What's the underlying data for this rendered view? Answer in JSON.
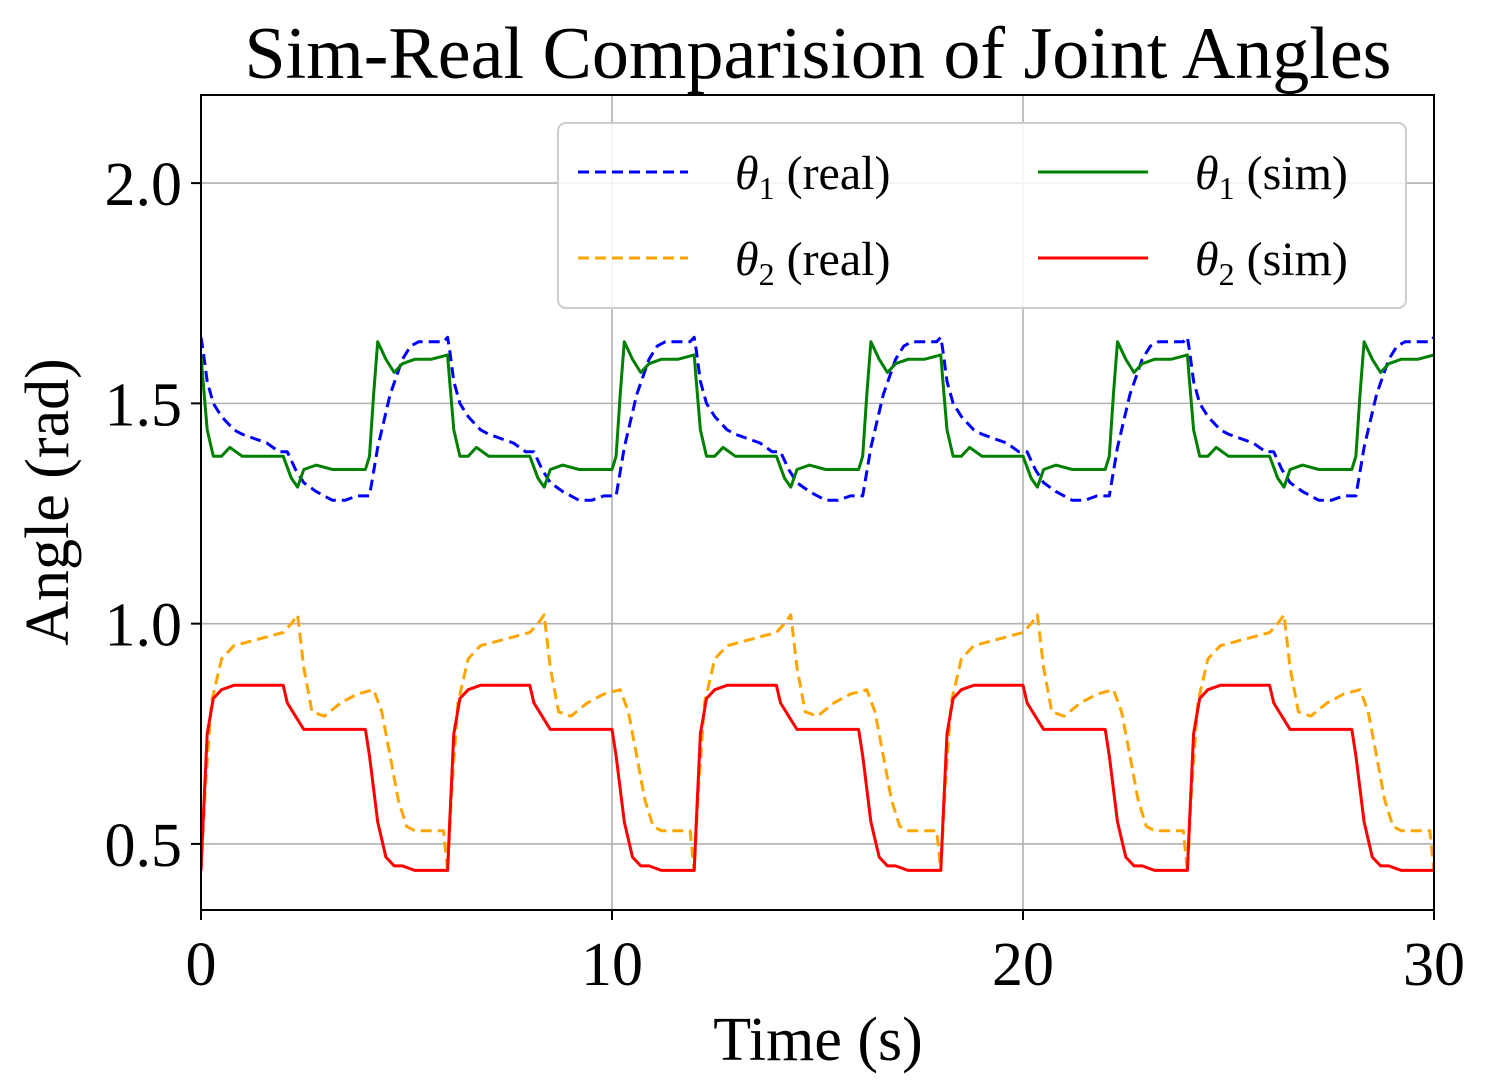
{
  "chart_data": {
    "type": "line",
    "title": "Sim-Real Comparision of Joint Angles",
    "xlabel": "Time (s)",
    "ylabel": "Angle (rad)",
    "xlim": [
      0,
      30
    ],
    "ylim": [
      0.35,
      2.2
    ],
    "xticks": [
      0,
      10,
      20,
      30
    ],
    "xtick_labels": [
      "0",
      "10",
      "20",
      "30"
    ],
    "yticks": [
      0.5,
      1.0,
      1.5,
      2.0
    ],
    "ytick_labels": [
      "0.5",
      "1.0",
      "1.5",
      "2.0"
    ],
    "grid": true,
    "legend": {
      "placement": "top-right",
      "columns": 2
    },
    "period_s": 6,
    "series": [
      {
        "name": "θ1 (real)",
        "sym": "θ",
        "sub": "1",
        "tag": "(real)",
        "color": "#0000ff",
        "dashed": true,
        "cycle_x": [
          0,
          0.05,
          0.15,
          0.3,
          0.5,
          0.8,
          1.0,
          1.3,
          1.6,
          1.9,
          2.1,
          2.3,
          2.5,
          2.8,
          3.0,
          3.2,
          3.5,
          3.8,
          4.0,
          4.1,
          4.3,
          4.6,
          4.9,
          5.1,
          5.3,
          5.6,
          5.9,
          6.0
        ],
        "cycle_y": [
          1.65,
          1.62,
          1.55,
          1.5,
          1.47,
          1.44,
          1.43,
          1.42,
          1.41,
          1.39,
          1.39,
          1.35,
          1.32,
          1.3,
          1.29,
          1.28,
          1.28,
          1.29,
          1.29,
          1.29,
          1.4,
          1.52,
          1.6,
          1.63,
          1.64,
          1.64,
          1.64,
          1.65
        ]
      },
      {
        "name": "θ2 (real)",
        "sym": "θ",
        "sub": "2",
        "tag": "(real)",
        "color": "#ffa500",
        "dashed": true,
        "cycle_x": [
          0,
          0.1,
          0.25,
          0.5,
          0.8,
          1.2,
          1.6,
          2.0,
          2.2,
          2.35,
          2.5,
          2.7,
          3.0,
          3.4,
          3.8,
          4.2,
          4.4,
          4.6,
          4.8,
          5.0,
          5.2,
          5.5,
          5.9,
          6.0
        ],
        "cycle_y": [
          0.44,
          0.62,
          0.82,
          0.92,
          0.95,
          0.96,
          0.97,
          0.98,
          1.0,
          1.02,
          0.9,
          0.8,
          0.79,
          0.82,
          0.84,
          0.85,
          0.8,
          0.7,
          0.6,
          0.54,
          0.53,
          0.53,
          0.53,
          0.44
        ]
      },
      {
        "name": "θ1 (sim)",
        "sym": "θ",
        "sub": "1",
        "tag": "(sim)",
        "color": "#008000",
        "dashed": false,
        "cycle_x": [
          0,
          0.05,
          0.15,
          0.3,
          0.5,
          0.7,
          1.0,
          1.5,
          2.0,
          2.2,
          2.35,
          2.5,
          2.8,
          3.2,
          3.6,
          4.0,
          4.1,
          4.2,
          4.3,
          4.5,
          4.7,
          4.9,
          5.2,
          5.6,
          6.0
        ],
        "cycle_y": [
          1.61,
          1.55,
          1.44,
          1.38,
          1.38,
          1.4,
          1.38,
          1.38,
          1.38,
          1.33,
          1.31,
          1.35,
          1.36,
          1.35,
          1.35,
          1.35,
          1.38,
          1.52,
          1.64,
          1.6,
          1.57,
          1.59,
          1.6,
          1.6,
          1.61
        ]
      },
      {
        "name": "θ2 (sim)",
        "sym": "θ",
        "sub": "2",
        "tag": "(sim)",
        "color": "#ff0000",
        "dashed": false,
        "cycle_x": [
          0,
          0.05,
          0.15,
          0.3,
          0.5,
          0.8,
          1.2,
          1.6,
          2.0,
          2.1,
          2.3,
          2.5,
          2.8,
          3.2,
          3.6,
          4.0,
          4.1,
          4.3,
          4.5,
          4.7,
          4.9,
          5.2,
          5.6,
          5.9,
          6.0
        ],
        "cycle_y": [
          0.44,
          0.55,
          0.75,
          0.83,
          0.85,
          0.86,
          0.86,
          0.86,
          0.86,
          0.82,
          0.79,
          0.76,
          0.76,
          0.76,
          0.76,
          0.76,
          0.7,
          0.55,
          0.47,
          0.45,
          0.45,
          0.44,
          0.44,
          0.44,
          0.44
        ]
      }
    ]
  }
}
